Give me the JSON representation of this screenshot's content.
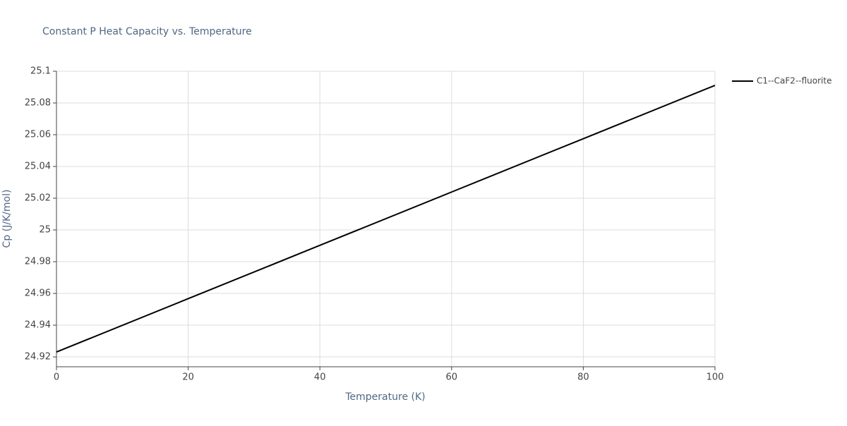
{
  "chart_data": {
    "type": "line",
    "title": "Constant P Heat Capacity vs. Temperature",
    "x_label": "Temperature (K)",
    "y_label": "Cp (J/K/mol)",
    "x": [
      0,
      20,
      40,
      60,
      80,
      100
    ],
    "series": [
      {
        "name": "C1--CaF2--fluorite",
        "color": "#000000",
        "values": [
          24.9231,
          24.9567,
          24.9903,
          25.0239,
          25.0575,
          25.0911
        ]
      }
    ],
    "xlim": [
      0,
      100
    ],
    "xticks": [
      0,
      20,
      40,
      60,
      80,
      100
    ],
    "ylim": [
      24.9138,
      25.1
    ],
    "yticks": [
      24.92,
      24.94,
      24.96,
      24.98,
      25,
      25.02,
      25.04,
      25.06,
      25.08,
      25.1
    ],
    "grid": true,
    "legend": "right"
  }
}
